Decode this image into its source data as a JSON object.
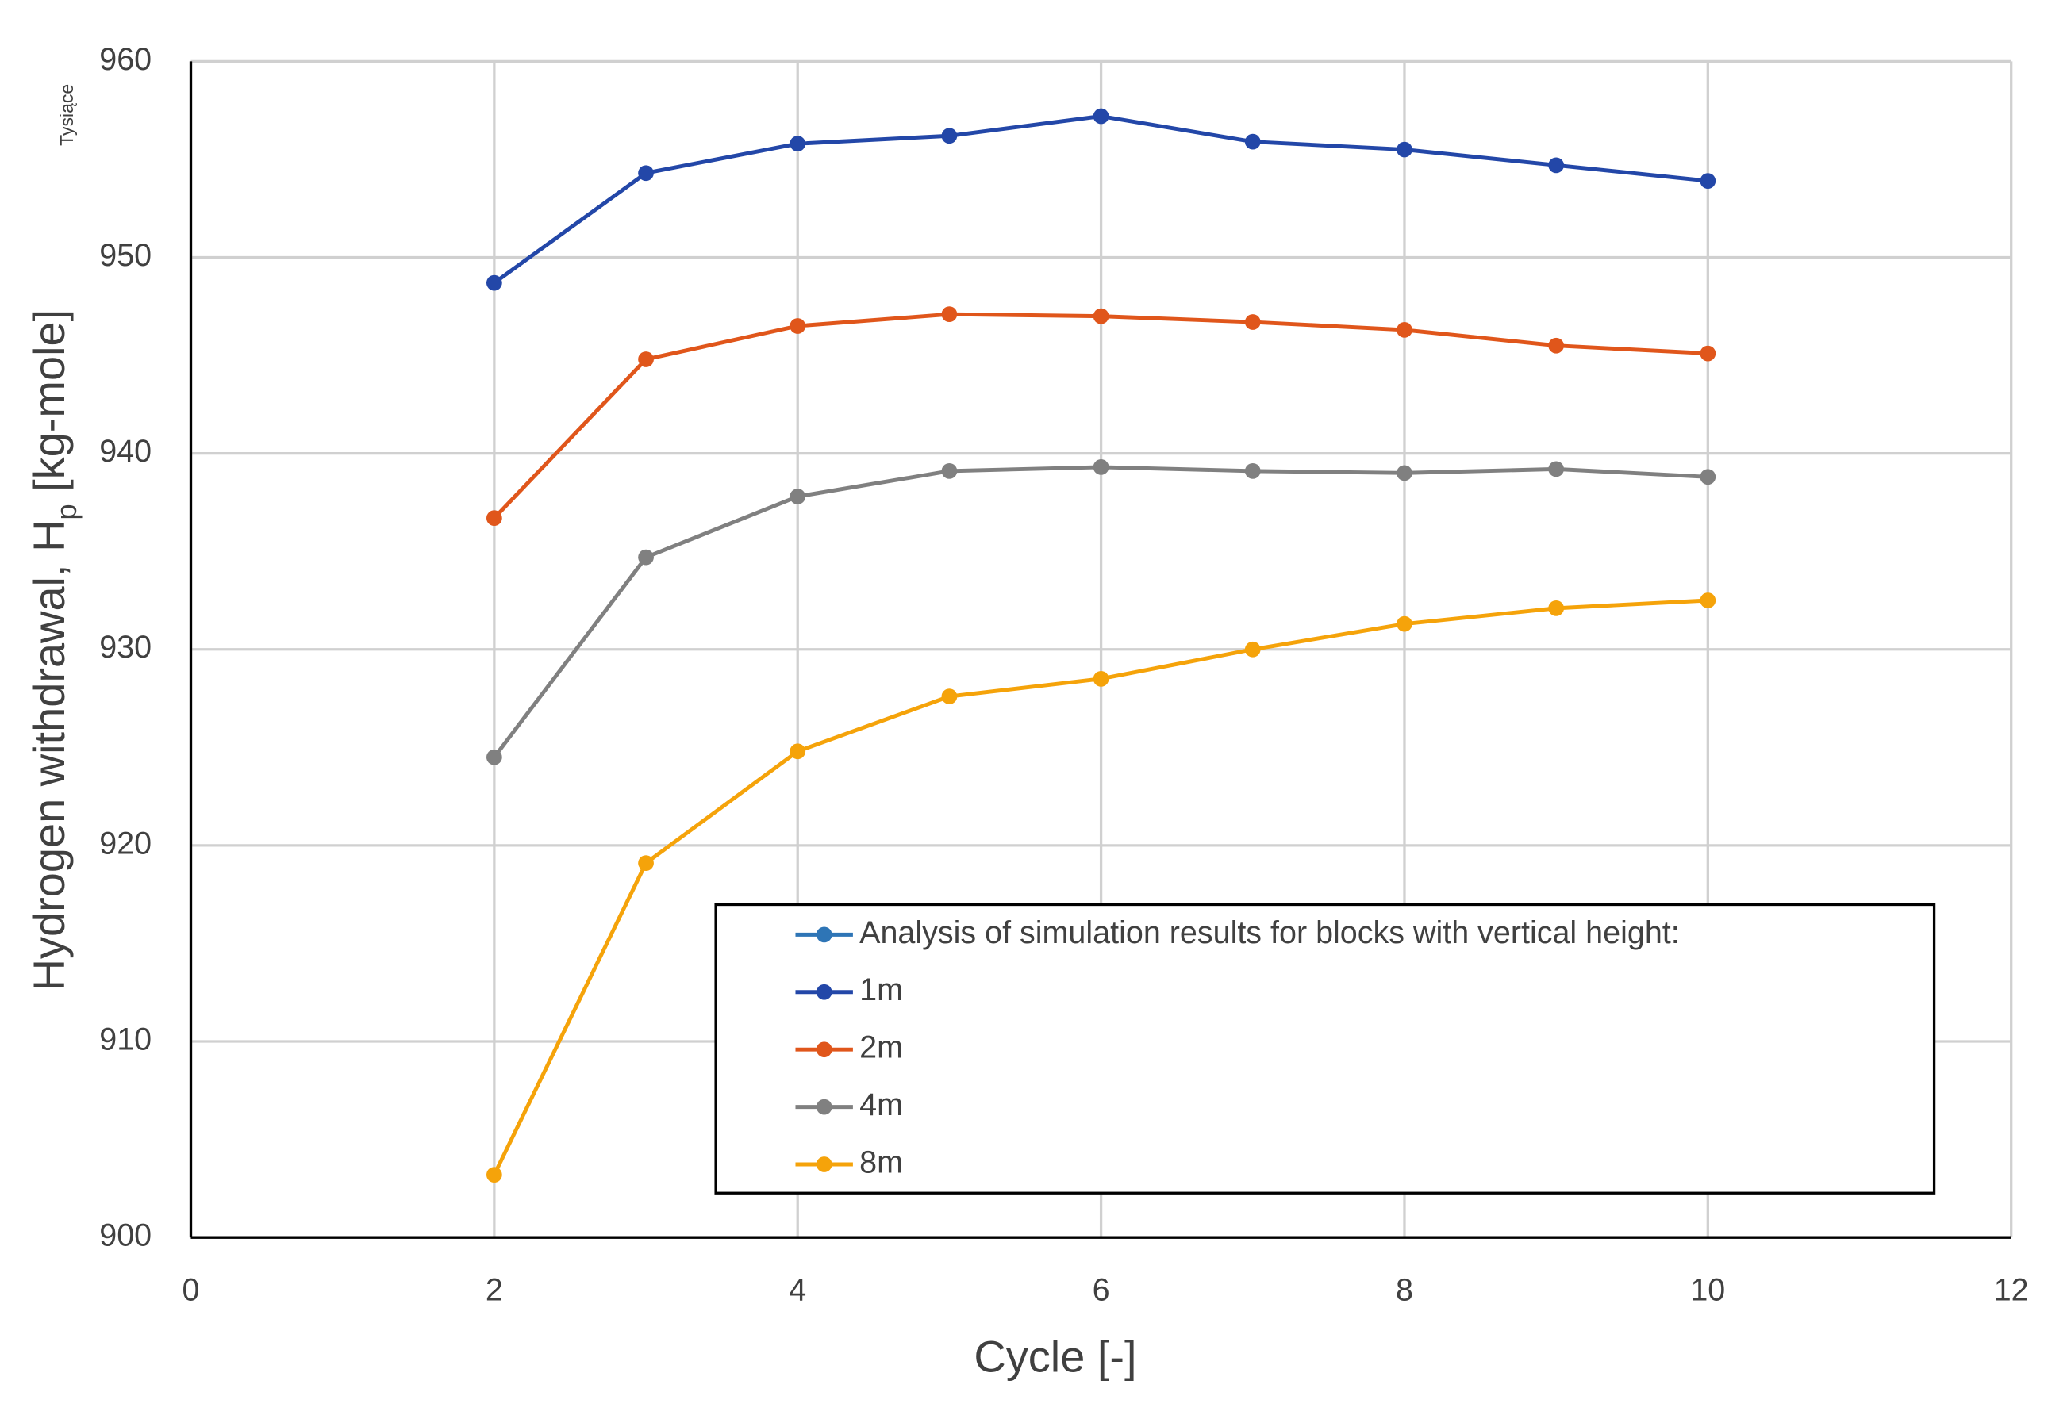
{
  "chart_data": {
    "type": "line",
    "display_unit": "Tysiące",
    "x_label": "Cycle [-]",
    "y_label": {
      "text": "Hydrogen withdrawal, H",
      "subscript": "p",
      "suffix": " [kg-mole]"
    },
    "x": [
      2,
      3,
      4,
      5,
      6,
      7,
      8,
      9,
      10
    ],
    "series": [
      {
        "name": "Analysis of simulation results for blocks with vertical height:",
        "color": "#2e75b6",
        "values": [
          null,
          null,
          null,
          null,
          null,
          null,
          null,
          null,
          null
        ]
      },
      {
        "name": "1m",
        "color": "#2347a8",
        "values": [
          948.7,
          954.3,
          955.8,
          956.2,
          957.2,
          955.9,
          955.5,
          954.7,
          953.9
        ]
      },
      {
        "name": "2m",
        "color": "#e0561b",
        "values": [
          936.7,
          944.8,
          946.5,
          947.1,
          947.0,
          946.7,
          946.3,
          945.5,
          945.1
        ]
      },
      {
        "name": "4m",
        "color": "#808080",
        "values": [
          924.5,
          934.7,
          937.8,
          939.1,
          939.3,
          939.1,
          939.0,
          939.2,
          938.8
        ]
      },
      {
        "name": "8m",
        "color": "#f5a30a",
        "values": [
          903.2,
          919.1,
          924.8,
          927.6,
          928.5,
          930.0,
          931.3,
          932.1,
          932.5
        ]
      }
    ],
    "xlim": [
      0,
      12
    ],
    "xticks": [
      0,
      2,
      4,
      6,
      8,
      10,
      12
    ],
    "ylim": [
      900,
      960
    ],
    "yticks": [
      900,
      910,
      920,
      930,
      940,
      950,
      960
    ],
    "grid": true,
    "legend": "bottom-right"
  }
}
